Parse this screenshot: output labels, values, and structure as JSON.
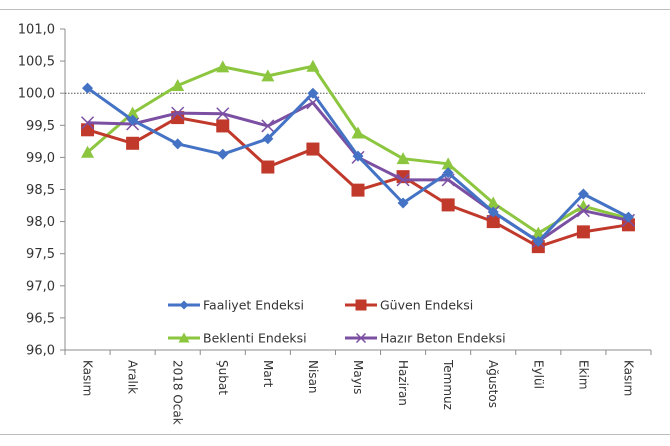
{
  "chart_data": {
    "type": "line",
    "title": "",
    "xlabel": "",
    "ylabel": "",
    "ylim": [
      96.0,
      101.0
    ],
    "yticks": [
      "101,0",
      "100,5",
      "100,0",
      "99,5",
      "99,0",
      "98,5",
      "98,0",
      "97,5",
      "97,0",
      "96,5",
      "96,0"
    ],
    "reference_line": 100.0,
    "grid": false,
    "legend_position": "inside-bottom",
    "categories": [
      "Kasım",
      "Aralık",
      "2018 Ocak",
      "Şubat",
      "Mart",
      "Nisan",
      "Mayıs",
      "Haziran",
      "Temmuz",
      "Ağustos",
      "Eylül",
      "Ekim",
      "Kasım"
    ],
    "series": [
      {
        "name": "Faaliyet Endeksi",
        "color": "#4472c4",
        "marker": "diamond",
        "values": [
          100.08,
          99.58,
          99.21,
          99.05,
          99.29,
          100.0,
          99.02,
          98.29,
          98.76,
          98.15,
          97.69,
          98.43,
          98.07
        ]
      },
      {
        "name": "Güven Endeksi",
        "color": "#c0392b",
        "marker": "square",
        "values": [
          99.43,
          99.22,
          99.62,
          99.49,
          98.85,
          99.13,
          98.49,
          98.7,
          98.26,
          98.0,
          97.61,
          97.84,
          97.95
        ]
      },
      {
        "name": "Beklenti Endeksi",
        "color": "#8cc63f",
        "marker": "triangle",
        "values": [
          99.08,
          99.69,
          100.12,
          100.41,
          100.27,
          100.42,
          99.38,
          98.98,
          98.9,
          98.29,
          97.82,
          98.24,
          98.05
        ]
      },
      {
        "name": "Hazır Beton Endeksi",
        "color": "#7b4fa2",
        "marker": "x",
        "values": [
          99.54,
          99.52,
          99.69,
          99.68,
          99.49,
          99.85,
          99.0,
          98.65,
          98.65,
          98.15,
          97.69,
          98.17,
          98.02
        ]
      }
    ]
  },
  "legend": {
    "items": [
      "Faaliyet Endeksi",
      "Güven Endeksi",
      "Beklenti Endeksi",
      "Hazır Beton Endeksi"
    ]
  }
}
